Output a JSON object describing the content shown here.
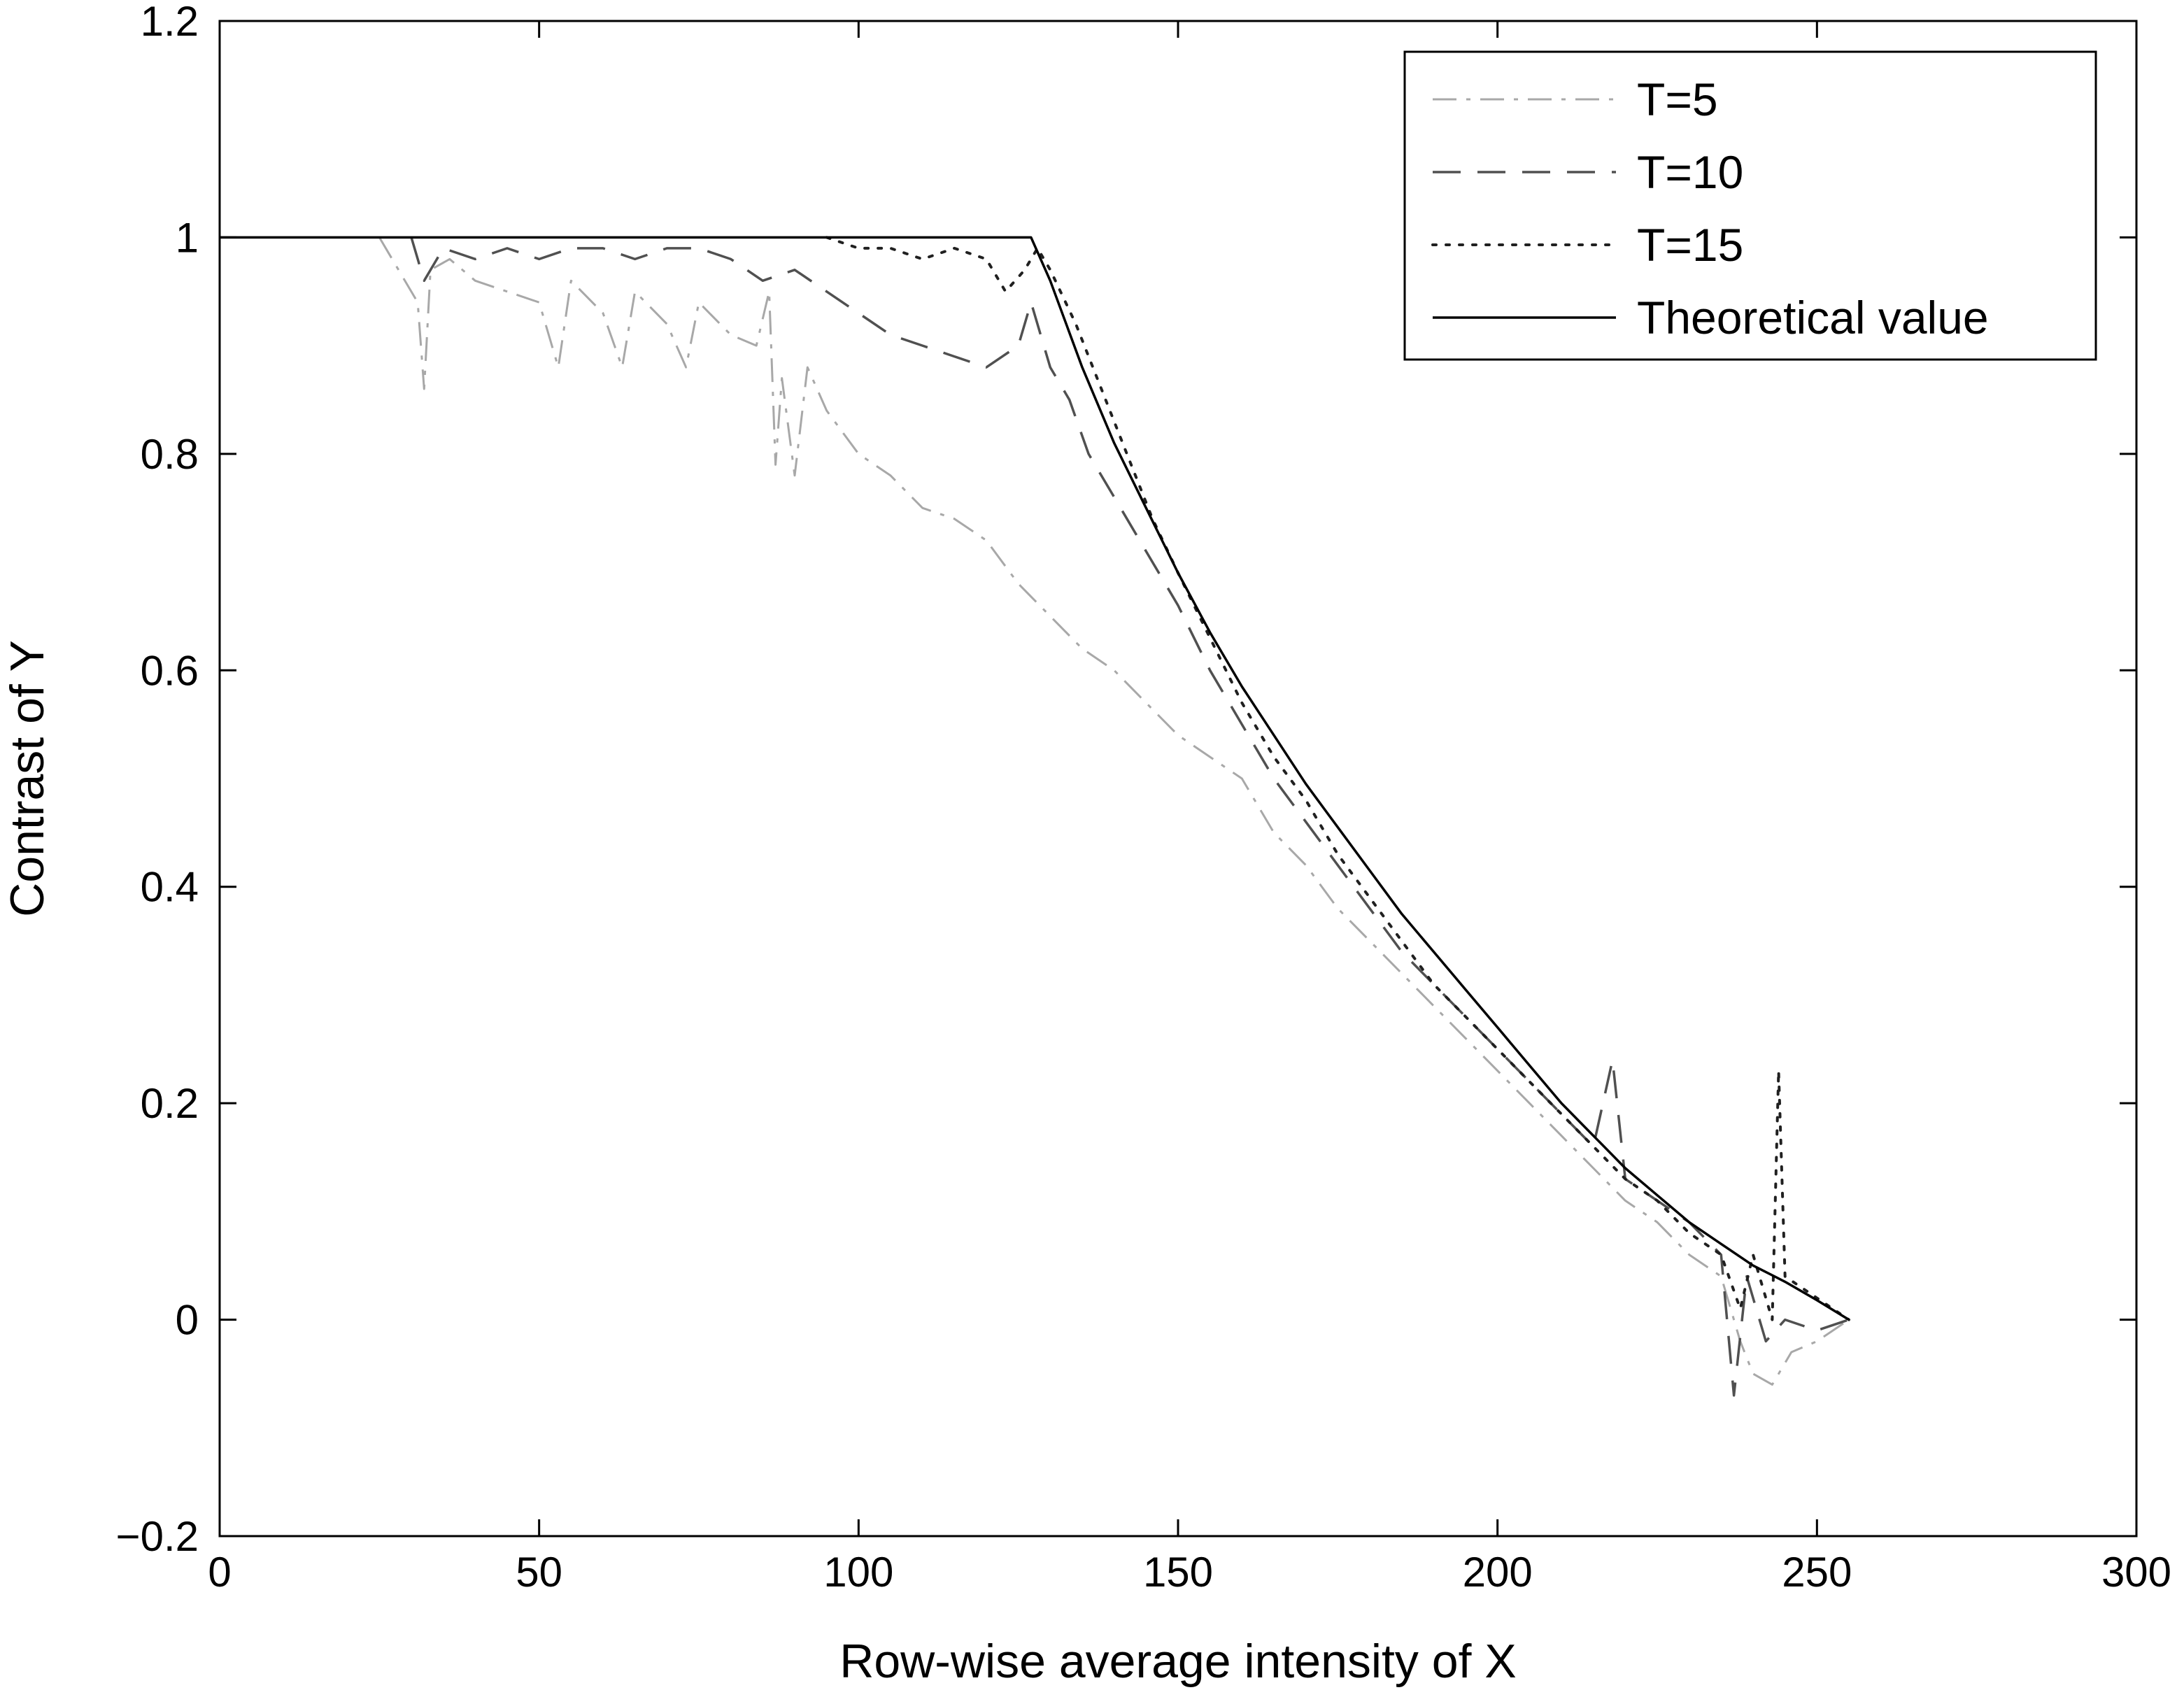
{
  "chart_data": {
    "type": "line",
    "title": "",
    "xlabel": "Row-wise average intensity of X",
    "ylabel": "Contrast of Y",
    "xlim": [
      0,
      300
    ],
    "ylim": [
      -0.2,
      1.2
    ],
    "xticks": [
      "0",
      "50",
      "100",
      "150",
      "200",
      "250",
      "300"
    ],
    "yticks": [
      "−0.2",
      "0",
      "0.2",
      "0.4",
      "0.6",
      "0.8",
      "1",
      "1.2"
    ],
    "grid": false,
    "legend_position": "top-right",
    "series": [
      {
        "name": "T=5",
        "style": "dash-dot",
        "color": "#a8a8a8",
        "points": [
          [
            25,
            1.0
          ],
          [
            28,
            0.97
          ],
          [
            31,
            0.94
          ],
          [
            32,
            0.86
          ],
          [
            33,
            0.97
          ],
          [
            36,
            0.98
          ],
          [
            40,
            0.96
          ],
          [
            45,
            0.95
          ],
          [
            50,
            0.94
          ],
          [
            53,
            0.88
          ],
          [
            55,
            0.96
          ],
          [
            60,
            0.93
          ],
          [
            63,
            0.88
          ],
          [
            65,
            0.95
          ],
          [
            70,
            0.92
          ],
          [
            73,
            0.88
          ],
          [
            75,
            0.94
          ],
          [
            80,
            0.91
          ],
          [
            84,
            0.9
          ],
          [
            86,
            0.95
          ],
          [
            87,
            0.79
          ],
          [
            88,
            0.87
          ],
          [
            90,
            0.78
          ],
          [
            92,
            0.88
          ],
          [
            95,
            0.84
          ],
          [
            100,
            0.8
          ],
          [
            105,
            0.78
          ],
          [
            110,
            0.75
          ],
          [
            115,
            0.74
          ],
          [
            120,
            0.72
          ],
          [
            125,
            0.68
          ],
          [
            130,
            0.65
          ],
          [
            135,
            0.62
          ],
          [
            140,
            0.6
          ],
          [
            145,
            0.57
          ],
          [
            150,
            0.54
          ],
          [
            155,
            0.52
          ],
          [
            160,
            0.5
          ],
          [
            165,
            0.45
          ],
          [
            170,
            0.42
          ],
          [
            175,
            0.38
          ],
          [
            180,
            0.35
          ],
          [
            185,
            0.32
          ],
          [
            190,
            0.29
          ],
          [
            195,
            0.26
          ],
          [
            200,
            0.23
          ],
          [
            205,
            0.2
          ],
          [
            210,
            0.17
          ],
          [
            215,
            0.14
          ],
          [
            220,
            0.11
          ],
          [
            225,
            0.09
          ],
          [
            230,
            0.06
          ],
          [
            235,
            0.04
          ],
          [
            238,
            -0.02
          ],
          [
            240,
            -0.05
          ],
          [
            243,
            -0.06
          ],
          [
            246,
            -0.03
          ],
          [
            250,
            -0.02
          ],
          [
            255,
            0.0
          ]
        ]
      },
      {
        "name": "T=10",
        "style": "dashed",
        "color": "#505050",
        "points": [
          [
            30,
            1.0
          ],
          [
            32,
            0.96
          ],
          [
            35,
            0.99
          ],
          [
            40,
            0.98
          ],
          [
            45,
            0.99
          ],
          [
            50,
            0.98
          ],
          [
            55,
            0.99
          ],
          [
            60,
            0.99
          ],
          [
            65,
            0.98
          ],
          [
            70,
            0.99
          ],
          [
            75,
            0.99
          ],
          [
            80,
            0.98
          ],
          [
            85,
            0.96
          ],
          [
            90,
            0.97
          ],
          [
            95,
            0.95
          ],
          [
            100,
            0.93
          ],
          [
            105,
            0.91
          ],
          [
            110,
            0.9
          ],
          [
            115,
            0.89
          ],
          [
            120,
            0.88
          ],
          [
            125,
            0.9
          ],
          [
            127,
            0.94
          ],
          [
            130,
            0.88
          ],
          [
            133,
            0.85
          ],
          [
            136,
            0.8
          ],
          [
            140,
            0.76
          ],
          [
            145,
            0.71
          ],
          [
            150,
            0.66
          ],
          [
            155,
            0.6
          ],
          [
            160,
            0.55
          ],
          [
            165,
            0.5
          ],
          [
            170,
            0.46
          ],
          [
            175,
            0.42
          ],
          [
            180,
            0.38
          ],
          [
            185,
            0.34
          ],
          [
            190,
            0.31
          ],
          [
            195,
            0.28
          ],
          [
            200,
            0.25
          ],
          [
            205,
            0.22
          ],
          [
            210,
            0.19
          ],
          [
            215,
            0.16
          ],
          [
            218,
            0.24
          ],
          [
            220,
            0.13
          ],
          [
            225,
            0.11
          ],
          [
            230,
            0.09
          ],
          [
            235,
            0.06
          ],
          [
            237,
            -0.07
          ],
          [
            239,
            0.04
          ],
          [
            242,
            -0.02
          ],
          [
            245,
            0.0
          ],
          [
            250,
            -0.01
          ],
          [
            255,
            0.0
          ]
        ]
      },
      {
        "name": "T=15",
        "style": "dotted",
        "color": "#202020",
        "points": [
          [
            95,
            1.0
          ],
          [
            100,
            0.99
          ],
          [
            105,
            0.99
          ],
          [
            110,
            0.98
          ],
          [
            115,
            0.99
          ],
          [
            120,
            0.98
          ],
          [
            123,
            0.95
          ],
          [
            126,
            0.97
          ],
          [
            128,
            0.99
          ],
          [
            130,
            0.97
          ],
          [
            134,
            0.92
          ],
          [
            138,
            0.86
          ],
          [
            142,
            0.8
          ],
          [
            146,
            0.74
          ],
          [
            150,
            0.69
          ],
          [
            155,
            0.63
          ],
          [
            160,
            0.57
          ],
          [
            165,
            0.52
          ],
          [
            170,
            0.48
          ],
          [
            175,
            0.43
          ],
          [
            180,
            0.39
          ],
          [
            185,
            0.35
          ],
          [
            190,
            0.31
          ],
          [
            195,
            0.28
          ],
          [
            200,
            0.25
          ],
          [
            205,
            0.22
          ],
          [
            210,
            0.19
          ],
          [
            215,
            0.16
          ],
          [
            220,
            0.13
          ],
          [
            225,
            0.11
          ],
          [
            230,
            0.08
          ],
          [
            235,
            0.06
          ],
          [
            238,
            0.01
          ],
          [
            240,
            0.06
          ],
          [
            243,
            0.0
          ],
          [
            244,
            0.23
          ],
          [
            245,
            0.04
          ],
          [
            250,
            0.02
          ],
          [
            255,
            0.0
          ]
        ]
      },
      {
        "name": "Theoretical value",
        "style": "solid",
        "color": "#000000",
        "points": [
          [
            0,
            1.0
          ],
          [
            127,
            1.0
          ],
          [
            130,
            0.96
          ],
          [
            135,
            0.88
          ],
          [
            140,
            0.81
          ],
          [
            145,
            0.75
          ],
          [
            150,
            0.69
          ],
          [
            155,
            0.635
          ],
          [
            160,
            0.585
          ],
          [
            165,
            0.54
          ],
          [
            170,
            0.495
          ],
          [
            175,
            0.455
          ],
          [
            180,
            0.415
          ],
          [
            185,
            0.375
          ],
          [
            190,
            0.34
          ],
          [
            195,
            0.305
          ],
          [
            200,
            0.27
          ],
          [
            205,
            0.235
          ],
          [
            210,
            0.2
          ],
          [
            215,
            0.17
          ],
          [
            220,
            0.14
          ],
          [
            225,
            0.115
          ],
          [
            230,
            0.09
          ],
          [
            235,
            0.07
          ],
          [
            240,
            0.05
          ],
          [
            245,
            0.035
          ],
          [
            250,
            0.018
          ],
          [
            255,
            0.0
          ]
        ]
      }
    ]
  }
}
